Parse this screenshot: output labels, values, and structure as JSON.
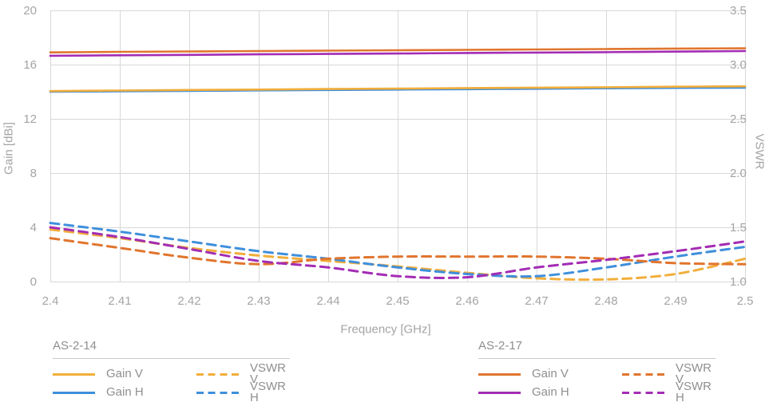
{
  "chart_data": {
    "type": "line",
    "xlabel": "Frequency [GHz]",
    "x_min": 2.4,
    "x_max": 2.5,
    "x": [
      2.4,
      2.41,
      2.42,
      2.43,
      2.44,
      2.45,
      2.46,
      2.47,
      2.48,
      2.49,
      2.5
    ],
    "x_tick_labels": [
      "2.4",
      "2.41",
      "2.42",
      "2.43",
      "2.44",
      "2.45",
      "2.46",
      "2.47",
      "2.48",
      "2.49",
      "2.5"
    ],
    "left_axis": {
      "label": "Gain [dBi]",
      "min": 0,
      "max": 20,
      "tick_values": [
        20,
        16,
        12,
        8,
        4,
        0
      ],
      "tick_labels": [
        "20",
        "16",
        "12",
        "8",
        "4",
        "0"
      ]
    },
    "right_axis": {
      "label": "VSWR",
      "min": 1.0,
      "max": 3.5,
      "tick_values": [
        3.5,
        3.0,
        2.5,
        2.0,
        1.5,
        1.0
      ],
      "tick_labels": [
        "3.5",
        "3.0",
        "2.5",
        "2.0",
        "1.5",
        "1.0"
      ]
    },
    "grid": true,
    "legend_position": "bottom",
    "series": [
      {
        "name": "AS-2-14 VSWR V",
        "axis": "right",
        "style": "dashed",
        "color": "#F1AE3B",
        "values": [
          1.48,
          1.4,
          1.31,
          1.24,
          1.19,
          1.14,
          1.08,
          1.03,
          1.02,
          1.07,
          1.21
        ]
      },
      {
        "name": "AS-2-14 VSWR H",
        "axis": "right",
        "style": "dashed",
        "color": "#3F8FDC",
        "values": [
          1.54,
          1.46,
          1.37,
          1.28,
          1.21,
          1.13,
          1.07,
          1.05,
          1.13,
          1.23,
          1.32
        ]
      },
      {
        "name": "AS-2-17 VSWR V",
        "axis": "right",
        "style": "dashed",
        "color": "#E1752E",
        "values": [
          1.4,
          1.31,
          1.22,
          1.16,
          1.21,
          1.23,
          1.23,
          1.23,
          1.21,
          1.17,
          1.16
        ]
      },
      {
        "name": "AS-2-17 VSWR H",
        "axis": "right",
        "style": "dashed",
        "color": "#A32CB4",
        "values": [
          1.5,
          1.41,
          1.3,
          1.19,
          1.13,
          1.05,
          1.04,
          1.13,
          1.2,
          1.28,
          1.37
        ]
      },
      {
        "name": "AS-2-14 Gain H",
        "axis": "left",
        "style": "solid",
        "color": "#3F8FDC",
        "values": [
          14.0,
          14.03,
          14.06,
          14.1,
          14.13,
          14.16,
          14.19,
          14.22,
          14.25,
          14.28,
          14.3
        ]
      },
      {
        "name": "AS-2-14 Gain V",
        "axis": "left",
        "style": "solid",
        "color": "#F1AE3B",
        "values": [
          14.05,
          14.09,
          14.13,
          14.16,
          14.2,
          14.23,
          14.27,
          14.3,
          14.33,
          14.37,
          14.4
        ]
      },
      {
        "name": "AS-2-17 Gain H",
        "axis": "left",
        "style": "solid",
        "color": "#A32CB4",
        "values": [
          16.65,
          16.69,
          16.72,
          16.76,
          16.79,
          16.82,
          16.86,
          16.89,
          16.92,
          16.96,
          17.0
        ]
      },
      {
        "name": "AS-2-17 Gain V",
        "axis": "left",
        "style": "solid",
        "color": "#E1752E",
        "values": [
          16.9,
          16.94,
          16.97,
          17.0,
          17.03,
          17.06,
          17.09,
          17.12,
          17.15,
          17.18,
          17.2
        ]
      }
    ]
  },
  "legend": {
    "groups": [
      {
        "title": "AS-2-14",
        "items": [
          {
            "label": "Gain V",
            "color": "#F1AE3B",
            "dashed": false
          },
          {
            "label": "VSWR V",
            "color": "#F1AE3B",
            "dashed": true
          },
          {
            "label": "Gain H",
            "color": "#3F8FDC",
            "dashed": false
          },
          {
            "label": "VSWR H",
            "color": "#3F8FDC",
            "dashed": true
          }
        ]
      },
      {
        "title": "AS-2-17",
        "items": [
          {
            "label": "Gain V",
            "color": "#E1752E",
            "dashed": false
          },
          {
            "label": "VSWR V",
            "color": "#E1752E",
            "dashed": true
          },
          {
            "label": "Gain H",
            "color": "#A32CB4",
            "dashed": false
          },
          {
            "label": "VSWR H",
            "color": "#A32CB4",
            "dashed": true
          }
        ]
      }
    ]
  },
  "colors": {
    "gridline": "#D8D8D8",
    "tick_text": "#A4A4A4",
    "legend_text": "#8F8F8F",
    "background": "#FFFFFF"
  }
}
